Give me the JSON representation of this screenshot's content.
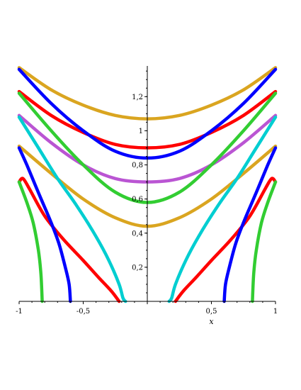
{
  "chart_data": {
    "type": "line",
    "xlabel": "x",
    "ylabel": "",
    "xlim": [
      -1,
      1
    ],
    "ylim": [
      0,
      1.38
    ],
    "x_ticks": [
      {
        "value": -1,
        "label": "-1"
      },
      {
        "value": -0.5,
        "label": "-0,5"
      },
      {
        "value": 0,
        "label": "0"
      },
      {
        "value": 0.5,
        "label": "0,5"
      },
      {
        "value": 1,
        "label": "1"
      }
    ],
    "y_ticks": [
      {
        "value": 0.2,
        "label": "0,2"
      },
      {
        "value": 0.4,
        "label": "0,4"
      },
      {
        "value": 0.6,
        "label": "0,6"
      },
      {
        "value": 0.8,
        "label": "0,8"
      },
      {
        "value": 1,
        "label": "1"
      },
      {
        "value": 1.2,
        "label": "1,2"
      }
    ],
    "series": [
      {
        "color": "#DAA520",
        "points": [
          [
            -1,
            1.37
          ],
          [
            -0.75,
            1.24
          ],
          [
            -0.5,
            1.15
          ],
          [
            -0.25,
            1.09
          ],
          [
            0,
            1.07
          ],
          [
            0.25,
            1.09
          ],
          [
            0.5,
            1.15
          ],
          [
            0.75,
            1.24
          ],
          [
            1,
            1.37
          ]
        ]
      },
      {
        "color": "#FF0000",
        "points": [
          [
            -1,
            1.23
          ],
          [
            -0.75,
            1.09
          ],
          [
            -0.5,
            0.99
          ],
          [
            -0.25,
            0.92
          ],
          [
            0,
            0.9
          ],
          [
            0.25,
            0.92
          ],
          [
            0.5,
            0.99
          ],
          [
            0.75,
            1.09
          ],
          [
            1,
            1.23
          ]
        ]
      },
      {
        "color": "#0000FF",
        "points": [
          [
            -1,
            1.36
          ],
          [
            -0.75,
            1.16
          ],
          [
            -0.5,
            1.0
          ],
          [
            -0.25,
            0.88
          ],
          [
            0,
            0.84
          ],
          [
            0.25,
            0.88
          ],
          [
            0.5,
            1.0
          ],
          [
            0.75,
            1.16
          ],
          [
            1,
            1.36
          ]
        ]
      },
      {
        "color": "#BA55D3",
        "points": [
          [
            -1,
            1.09
          ],
          [
            -0.75,
            0.93
          ],
          [
            -0.5,
            0.8
          ],
          [
            -0.25,
            0.72
          ],
          [
            0,
            0.7
          ],
          [
            0.25,
            0.72
          ],
          [
            0.5,
            0.8
          ],
          [
            0.75,
            0.93
          ],
          [
            1,
            1.09
          ]
        ]
      },
      {
        "color": "#32CD32",
        "points": [
          [
            -1,
            1.22
          ],
          [
            -0.75,
            1.0
          ],
          [
            -0.5,
            0.8
          ],
          [
            -0.25,
            0.64
          ],
          [
            0,
            0.58
          ],
          [
            0.25,
            0.64
          ],
          [
            0.5,
            0.8
          ],
          [
            0.75,
            1.0
          ],
          [
            1,
            1.22
          ]
        ]
      },
      {
        "color": "#DAA520",
        "points": [
          [
            -1,
            0.91
          ],
          [
            -0.75,
            0.75
          ],
          [
            -0.5,
            0.6
          ],
          [
            -0.25,
            0.49
          ],
          [
            0,
            0.44
          ],
          [
            0.25,
            0.49
          ],
          [
            0.5,
            0.6
          ],
          [
            0.75,
            0.75
          ],
          [
            1,
            0.91
          ]
        ]
      },
      {
        "color": "#00CED1",
        "points": [
          [
            -1,
            1.08
          ],
          [
            -0.85,
            0.9
          ],
          [
            -0.7,
            0.72
          ],
          [
            -0.55,
            0.56
          ],
          [
            -0.4,
            0.38
          ],
          [
            -0.3,
            0.24
          ],
          [
            -0.22,
            0.1
          ],
          [
            -0.19,
            0.02
          ],
          [
            -0.17,
            0
          ]
        ]
      },
      {
        "color": "#00CED1",
        "points": [
          [
            0.17,
            0
          ],
          [
            0.19,
            0.02
          ],
          [
            0.22,
            0.1
          ],
          [
            0.3,
            0.24
          ],
          [
            0.4,
            0.38
          ],
          [
            0.55,
            0.56
          ],
          [
            0.7,
            0.72
          ],
          [
            0.85,
            0.9
          ],
          [
            1,
            1.08
          ]
        ]
      },
      {
        "color": "#FF0000",
        "points": [
          [
            -1,
            0.7
          ],
          [
            -0.97,
            0.72
          ],
          [
            -0.92,
            0.66
          ],
          [
            -0.8,
            0.5
          ],
          [
            -0.65,
            0.36
          ],
          [
            -0.5,
            0.24
          ],
          [
            -0.38,
            0.14
          ],
          [
            -0.28,
            0.06
          ],
          [
            -0.22,
            0
          ]
        ]
      },
      {
        "color": "#FF0000",
        "points": [
          [
            0.22,
            0
          ],
          [
            0.28,
            0.06
          ],
          [
            0.38,
            0.14
          ],
          [
            0.5,
            0.24
          ],
          [
            0.65,
            0.36
          ],
          [
            0.8,
            0.5
          ],
          [
            0.92,
            0.66
          ],
          [
            0.97,
            0.72
          ],
          [
            1,
            0.7
          ]
        ]
      },
      {
        "color": "#0000FF",
        "points": [
          [
            -1,
            0.9
          ],
          [
            -0.94,
            0.8
          ],
          [
            -0.84,
            0.62
          ],
          [
            -0.76,
            0.48
          ],
          [
            -0.69,
            0.34
          ],
          [
            -0.64,
            0.2
          ],
          [
            -0.61,
            0.1
          ],
          [
            -0.6,
            0
          ]
        ]
      },
      {
        "color": "#0000FF",
        "points": [
          [
            0.6,
            0
          ],
          [
            0.61,
            0.1
          ],
          [
            0.64,
            0.2
          ],
          [
            0.69,
            0.34
          ],
          [
            0.76,
            0.48
          ],
          [
            0.84,
            0.62
          ],
          [
            0.94,
            0.8
          ],
          [
            1,
            0.9
          ]
        ]
      },
      {
        "color": "#32CD32",
        "points": [
          [
            -1,
            0.7
          ],
          [
            -0.94,
            0.58
          ],
          [
            -0.89,
            0.46
          ],
          [
            -0.85,
            0.3
          ],
          [
            -0.83,
            0.16
          ],
          [
            -0.82,
            0
          ]
        ]
      },
      {
        "color": "#32CD32",
        "points": [
          [
            0.82,
            0
          ],
          [
            0.83,
            0.16
          ],
          [
            0.85,
            0.3
          ],
          [
            0.89,
            0.46
          ],
          [
            0.94,
            0.58
          ],
          [
            1,
            0.7
          ]
        ]
      }
    ]
  }
}
